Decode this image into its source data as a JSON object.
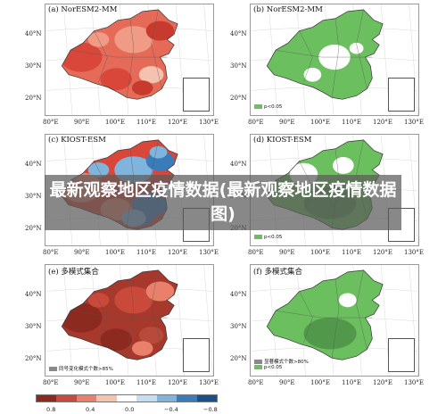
{
  "banner_title": "最新观察地区疫情数据(最新观察地区疫情数据图)",
  "colorbar": {
    "ticks": [
      "0.8",
      "0.4",
      "0.0",
      "−0.4",
      "−0.8"
    ],
    "colors": [
      "#8c2a1f",
      "#c9493a",
      "#e9806b",
      "#f6c2b0",
      "#ffffff",
      "#c7def0",
      "#7fb4dd",
      "#3a7cba",
      "#1b4f8a"
    ]
  },
  "lat_labels": [
    "40°N",
    "30°N",
    "20°N"
  ],
  "lon_labels": [
    "80°E",
    "90°E",
    "100°E",
    "110°E",
    "120°E",
    "130°E"
  ],
  "panels": [
    {
      "label": "(a) NorESM2-MM",
      "type": "correlation",
      "palette": "red"
    },
    {
      "label": "(b) NorESM2-MM",
      "type": "significance",
      "legend": [
        {
          "text": "p<0.05",
          "color": "#6bbf5e"
        }
      ]
    },
    {
      "label": "(c) KIOST-ESM",
      "type": "correlation",
      "palette": "redblue"
    },
    {
      "label": "(d) KIOST-ESM",
      "type": "significance",
      "legend": [
        {
          "text": "p<0.05",
          "color": "#6bbf5e"
        }
      ]
    },
    {
      "label": "(e) 多模式集合",
      "type": "correlation",
      "palette": "darkred",
      "legend": [
        {
          "text": "同号变化模式个数>85%",
          "color": "#8a8a8a"
        }
      ]
    },
    {
      "label": "(f) 多模式集合",
      "type": "significance",
      "legend": [
        {
          "text": "显著模式个数>80%",
          "color": "#8a8a8a"
        },
        {
          "text": "p<0.05",
          "color": "#6bbf5e"
        }
      ]
    }
  ]
}
